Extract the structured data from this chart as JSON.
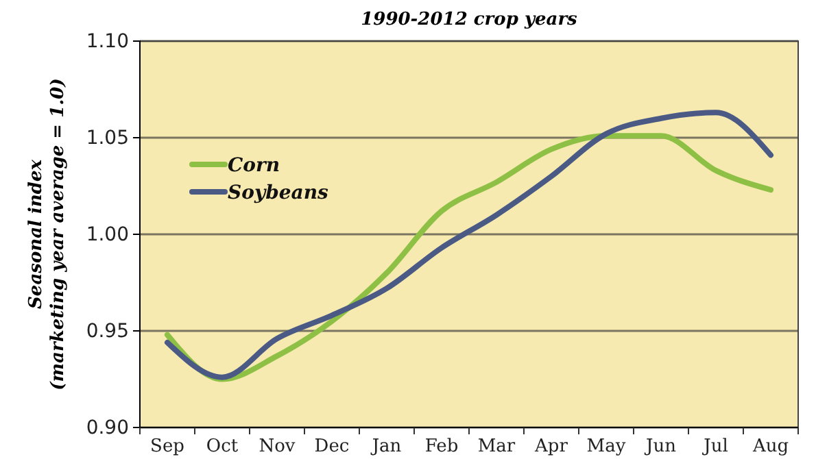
{
  "chart_data": {
    "type": "line",
    "title": "1990-2012 crop years",
    "ylabel": "Seasonal index\n(marketing year average = 1.0)",
    "categories": [
      "Sep",
      "Oct",
      "Nov",
      "Dec",
      "Jan",
      "Feb",
      "Mar",
      "Apr",
      "May",
      "Jun",
      "Jul",
      "Aug"
    ],
    "series": [
      {
        "name": "Corn",
        "color": "#8dc044",
        "values": [
          0.948,
          0.925,
          0.937,
          0.955,
          0.98,
          1.012,
          1.027,
          1.044,
          1.051,
          1.051,
          1.033,
          1.023
        ]
      },
      {
        "name": "Soybeans",
        "color": "#4a5a85",
        "values": [
          0.944,
          0.926,
          0.946,
          0.958,
          0.972,
          0.993,
          1.01,
          1.03,
          1.052,
          1.06,
          1.063,
          1.041
        ]
      }
    ],
    "ylim": [
      0.9,
      1.1
    ],
    "yticks": [
      {
        "value": 0.9,
        "label": "0.90"
      },
      {
        "value": 0.95,
        "label": "0.95"
      },
      {
        "value": 1.0,
        "label": "1.00"
      },
      {
        "value": 1.05,
        "label": "1.05"
      },
      {
        "value": 1.1,
        "label": "1.10"
      }
    ],
    "grid": "y",
    "legend": "top left",
    "marker": "none",
    "line_style": "solid"
  }
}
